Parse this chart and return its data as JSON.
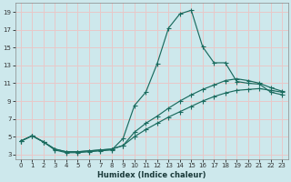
{
  "xlabel": "Humidex (Indice chaleur)",
  "bg_color": "#cde8ec",
  "grid_color": "#e8c8c8",
  "line_color": "#1a6b5e",
  "xlim": [
    -0.5,
    23.5
  ],
  "ylim": [
    2.5,
    20
  ],
  "xticks": [
    0,
    1,
    2,
    3,
    4,
    5,
    6,
    7,
    8,
    9,
    10,
    11,
    12,
    13,
    14,
    15,
    16,
    17,
    18,
    19,
    20,
    21,
    22,
    23
  ],
  "yticks": [
    3,
    5,
    7,
    9,
    11,
    13,
    15,
    17,
    19
  ],
  "curve1_x": [
    0,
    1,
    2,
    3,
    4,
    5,
    6,
    7,
    8,
    9,
    10,
    11,
    12,
    13,
    14,
    15,
    16,
    17,
    18,
    19,
    20,
    21,
    22,
    23
  ],
  "curve1_y": [
    4.5,
    5.1,
    4.4,
    3.5,
    3.2,
    3.2,
    3.3,
    3.4,
    3.5,
    4.8,
    8.5,
    10.0,
    13.2,
    17.2,
    18.8,
    19.2,
    15.1,
    13.3,
    13.3,
    11.2,
    11.0,
    10.9,
    10.0,
    9.7
  ],
  "curve2_x": [
    0,
    1,
    2,
    3,
    4,
    5,
    6,
    7,
    8,
    9,
    10,
    11,
    12,
    13,
    14,
    15,
    16,
    17,
    18,
    19,
    20,
    21,
    22,
    23
  ],
  "curve2_y": [
    4.5,
    5.1,
    4.4,
    3.6,
    3.3,
    3.3,
    3.4,
    3.5,
    3.6,
    4.0,
    5.5,
    6.5,
    7.3,
    8.2,
    9.0,
    9.7,
    10.3,
    10.8,
    11.3,
    11.5,
    11.3,
    11.0,
    10.5,
    10.1
  ],
  "curve3_x": [
    0,
    1,
    2,
    3,
    4,
    5,
    6,
    7,
    8,
    9,
    10,
    11,
    12,
    13,
    14,
    15,
    16,
    17,
    18,
    19,
    20,
    21,
    22,
    23
  ],
  "curve3_y": [
    4.5,
    5.1,
    4.4,
    3.6,
    3.3,
    3.3,
    3.4,
    3.5,
    3.6,
    4.0,
    5.0,
    5.8,
    6.5,
    7.2,
    7.8,
    8.4,
    9.0,
    9.5,
    9.9,
    10.2,
    10.3,
    10.4,
    10.2,
    10.0
  ]
}
